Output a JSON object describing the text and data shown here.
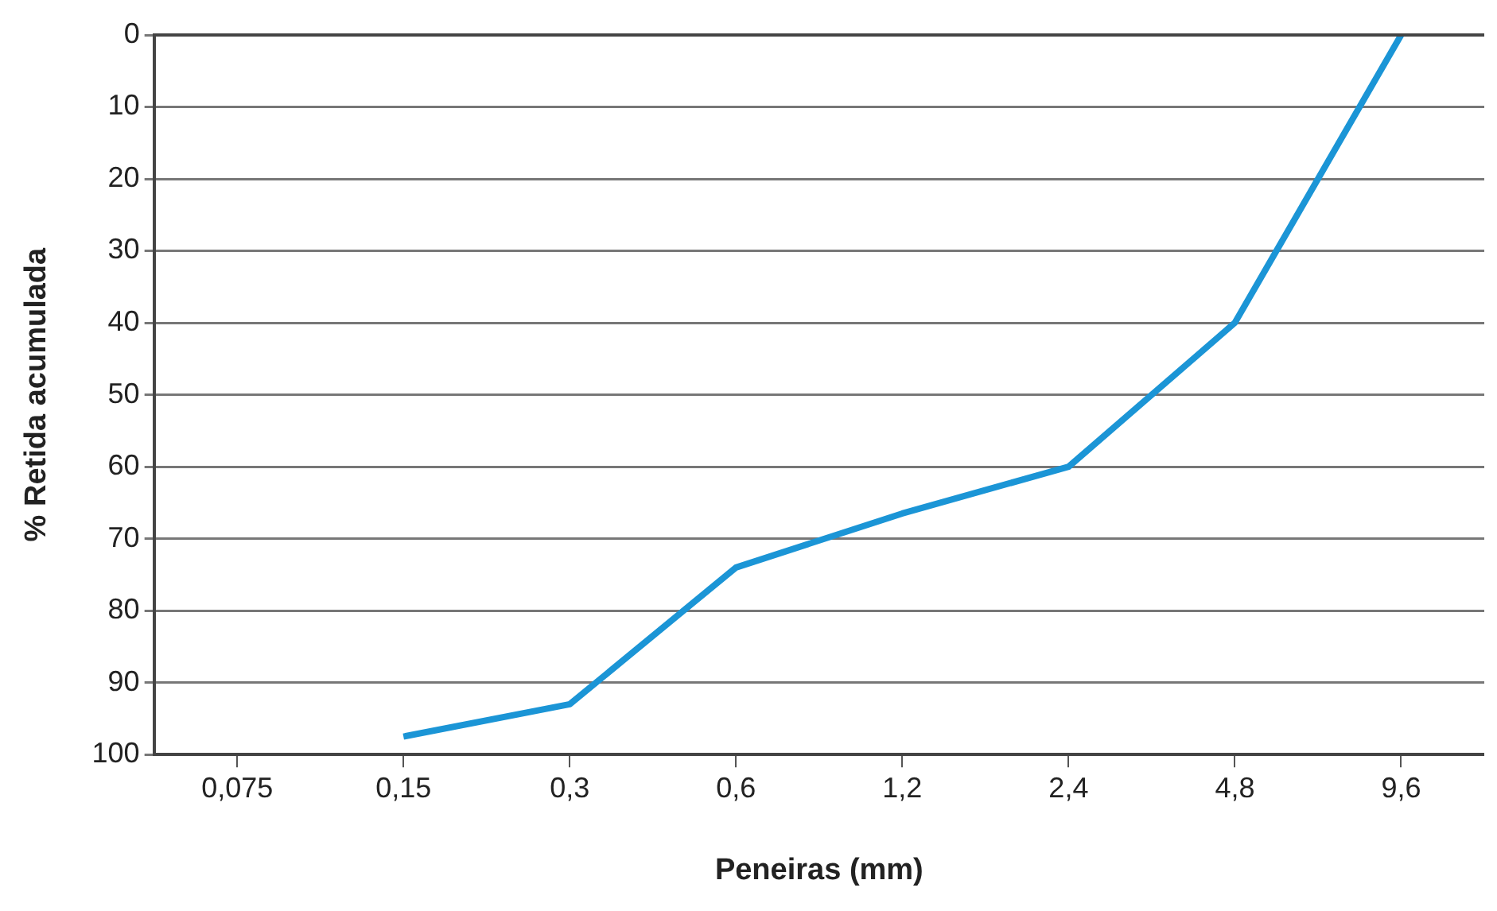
{
  "chart_data": {
    "type": "line",
    "xlabel": "Peneiras (mm)",
    "ylabel": "% Retida acumulada",
    "categories": [
      "0,075",
      "0,15",
      "0,3",
      "0,6",
      "1,2",
      "2,4",
      "4,8",
      "9,6"
    ],
    "series": [
      {
        "color": "#1b95d6",
        "values": [
          null,
          97.5,
          93,
          74,
          66.5,
          60,
          40,
          0
        ]
      }
    ],
    "ylim": [
      100,
      0
    ],
    "yticks": [
      0,
      10,
      20,
      30,
      40,
      50,
      60,
      70,
      80,
      90,
      100
    ],
    "grid": "y",
    "legend": false,
    "marker": "none",
    "line_style": "solid"
  }
}
